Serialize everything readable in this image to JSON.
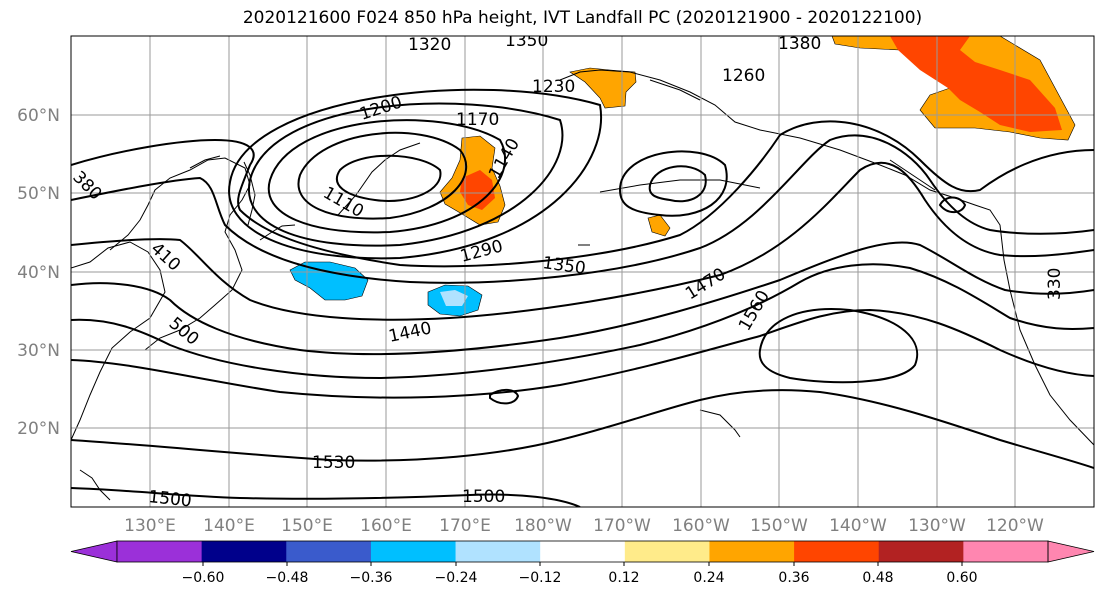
{
  "title": "2020121600 F024 850 hPa height, IVT Landfall PC (2020121900 - 2020122100)",
  "lat_labels": [
    "60°N",
    "50°N",
    "40°N",
    "30°N",
    "20°N"
  ],
  "lon_labels": [
    "130°E",
    "140°E",
    "150°E",
    "160°E",
    "170°E",
    "180°W",
    "170°W",
    "160°W",
    "150°W",
    "140°W",
    "130°W",
    "120°W"
  ],
  "contour_labels": [
    "1320",
    "1350",
    "1380",
    "1260",
    "1230",
    "1200",
    "1170",
    "1140",
    "1110",
    "380",
    "410",
    "500",
    "1290",
    "1350",
    "1470",
    "1560",
    "1440",
    "1530",
    "1500",
    "1500",
    "330"
  ],
  "colorbar": {
    "ticks": [
      "−0.60",
      "−0.48",
      "−0.36",
      "−0.24",
      "−0.12",
      "0.12",
      "0.24",
      "0.36",
      "0.48",
      "0.60"
    ],
    "colors": [
      "#9b30d9",
      "#00008b",
      "#3a5bcc",
      "#00bfff",
      "#b0e2ff",
      "#ffffff",
      "#ffeb8a",
      "#ffa500",
      "#ff4500",
      "#b22222",
      "#ff86b0",
      "#ff86b0"
    ]
  }
}
